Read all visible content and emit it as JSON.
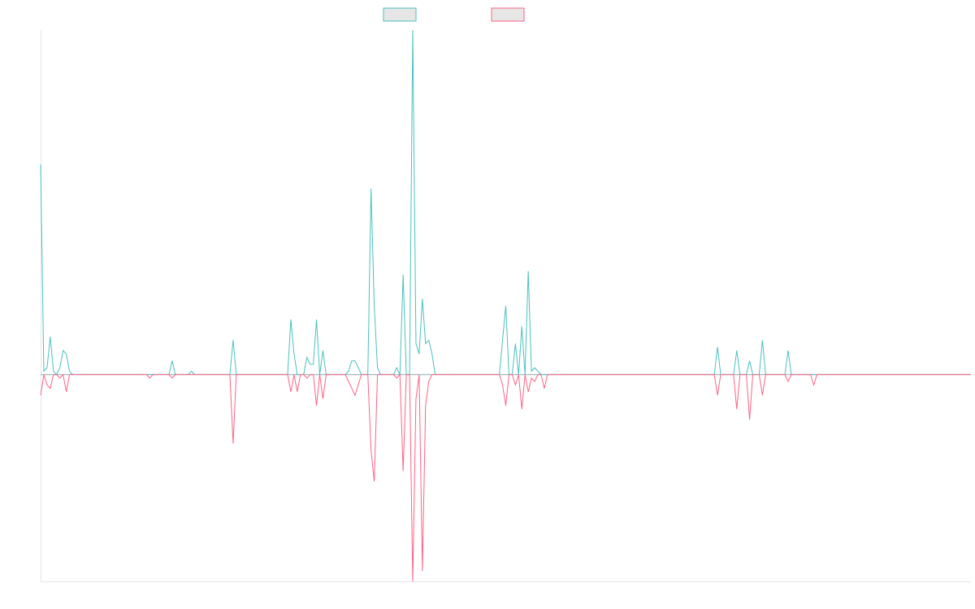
{
  "chart_data": {
    "type": "line",
    "title": "",
    "xlabel": "",
    "ylabel": "",
    "legend": "top-center",
    "grid": false,
    "xlim": [
      0,
      290
    ],
    "ylim": [
      -60,
      100
    ],
    "baseline": 0,
    "colors": [
      "#4bc0c0",
      "#ff6384"
    ],
    "series": [
      {
        "name": "",
        "color": "#4bc0c0",
        "points": [
          [
            0,
            61
          ],
          [
            1,
            1
          ],
          [
            2,
            2
          ],
          [
            3,
            11
          ],
          [
            4,
            1
          ],
          [
            5,
            0
          ],
          [
            6,
            2
          ],
          [
            7,
            7
          ],
          [
            8,
            6
          ],
          [
            9,
            1
          ],
          [
            10,
            0
          ],
          [
            22,
            0
          ],
          [
            33,
            0
          ],
          [
            34,
            0
          ],
          [
            35,
            0
          ],
          [
            40,
            0
          ],
          [
            41,
            4
          ],
          [
            42,
            0
          ],
          [
            46,
            0
          ],
          [
            47,
            1
          ],
          [
            48,
            0
          ],
          [
            59,
            0
          ],
          [
            60,
            10
          ],
          [
            61,
            0
          ],
          [
            77,
            0
          ],
          [
            78,
            16
          ],
          [
            79,
            6
          ],
          [
            80,
            0
          ],
          [
            81,
            0
          ],
          [
            82,
            0
          ],
          [
            83,
            5
          ],
          [
            84,
            3
          ],
          [
            85,
            3
          ],
          [
            86,
            16
          ],
          [
            87,
            0
          ],
          [
            88,
            7
          ],
          [
            89,
            0
          ],
          [
            95,
            0
          ],
          [
            96,
            1
          ],
          [
            97,
            4
          ],
          [
            98,
            4
          ],
          [
            99,
            2
          ],
          [
            100,
            0
          ],
          [
            102,
            0
          ],
          [
            103,
            54
          ],
          [
            104,
            20
          ],
          [
            105,
            2
          ],
          [
            106,
            0
          ],
          [
            110,
            0
          ],
          [
            111,
            2
          ],
          [
            112,
            0
          ],
          [
            113,
            29
          ],
          [
            114,
            0
          ],
          [
            115,
            0
          ],
          [
            116,
            100
          ],
          [
            117,
            9
          ],
          [
            118,
            6
          ],
          [
            119,
            22
          ],
          [
            120,
            9
          ],
          [
            121,
            10
          ],
          [
            122,
            6
          ],
          [
            123,
            0
          ],
          [
            143,
            0
          ],
          [
            144,
            10
          ],
          [
            145,
            20
          ],
          [
            146,
            0
          ],
          [
            147,
            0
          ],
          [
            148,
            9
          ],
          [
            149,
            0
          ],
          [
            150,
            14
          ],
          [
            151,
            0
          ],
          [
            152,
            30
          ],
          [
            153,
            1
          ],
          [
            154,
            2
          ],
          [
            155,
            1
          ],
          [
            156,
            0
          ],
          [
            158,
            0
          ],
          [
            179,
            0
          ],
          [
            210,
            0
          ],
          [
            211,
            8
          ],
          [
            212,
            0
          ],
          [
            216,
            0
          ],
          [
            217,
            7
          ],
          [
            218,
            0
          ],
          [
            220,
            0
          ],
          [
            221,
            4
          ],
          [
            222,
            0
          ],
          [
            224,
            0
          ],
          [
            225,
            10
          ],
          [
            226,
            0
          ],
          [
            232,
            0
          ],
          [
            233,
            7
          ],
          [
            234,
            0
          ],
          [
            290,
            0
          ]
        ]
      },
      {
        "name": "",
        "color": "#ff6384",
        "points": [
          [
            0,
            -6
          ],
          [
            1,
            0
          ],
          [
            2,
            -3
          ],
          [
            3,
            -4
          ],
          [
            4,
            0
          ],
          [
            5,
            0
          ],
          [
            6,
            -1
          ],
          [
            7,
            0
          ],
          [
            8,
            -5
          ],
          [
            9,
            0
          ],
          [
            10,
            0
          ],
          [
            22,
            0
          ],
          [
            33,
            0
          ],
          [
            34,
            -1
          ],
          [
            35,
            0
          ],
          [
            40,
            0
          ],
          [
            41,
            -1
          ],
          [
            42,
            0
          ],
          [
            59,
            0
          ],
          [
            60,
            -20
          ],
          [
            61,
            0
          ],
          [
            77,
            0
          ],
          [
            78,
            -5
          ],
          [
            79,
            0
          ],
          [
            80,
            -5
          ],
          [
            81,
            0
          ],
          [
            82,
            0
          ],
          [
            83,
            -1
          ],
          [
            84,
            0
          ],
          [
            85,
            0
          ],
          [
            86,
            -9
          ],
          [
            87,
            0
          ],
          [
            88,
            -7
          ],
          [
            89,
            0
          ],
          [
            95,
            0
          ],
          [
            96,
            -2
          ],
          [
            97,
            -4
          ],
          [
            98,
            -6
          ],
          [
            99,
            -3
          ],
          [
            100,
            0
          ],
          [
            102,
            0
          ],
          [
            103,
            -22
          ],
          [
            104,
            -31
          ],
          [
            105,
            0
          ],
          [
            106,
            0
          ],
          [
            110,
            0
          ],
          [
            111,
            -1
          ],
          [
            112,
            0
          ],
          [
            113,
            -28
          ],
          [
            114,
            0
          ],
          [
            115,
            0
          ],
          [
            116,
            -60
          ],
          [
            117,
            -7
          ],
          [
            118,
            0
          ],
          [
            119,
            -57
          ],
          [
            120,
            -9
          ],
          [
            121,
            -2
          ],
          [
            122,
            0
          ],
          [
            143,
            0
          ],
          [
            144,
            -3
          ],
          [
            145,
            -9
          ],
          [
            146,
            0
          ],
          [
            147,
            0
          ],
          [
            148,
            -3
          ],
          [
            149,
            0
          ],
          [
            150,
            -10
          ],
          [
            151,
            0
          ],
          [
            152,
            -5
          ],
          [
            153,
            -1
          ],
          [
            154,
            -2
          ],
          [
            155,
            0
          ],
          [
            156,
            0
          ],
          [
            157,
            -4
          ],
          [
            158,
            0
          ],
          [
            179,
            0
          ],
          [
            210,
            0
          ],
          [
            211,
            -6
          ],
          [
            212,
            0
          ],
          [
            216,
            0
          ],
          [
            217,
            -10
          ],
          [
            218,
            0
          ],
          [
            220,
            0
          ],
          [
            221,
            -13
          ],
          [
            222,
            0
          ],
          [
            224,
            0
          ],
          [
            225,
            -6
          ],
          [
            226,
            0
          ],
          [
            232,
            0
          ],
          [
            233,
            -2
          ],
          [
            234,
            0
          ],
          [
            240,
            0
          ],
          [
            241,
            -3
          ],
          [
            242,
            0
          ],
          [
            290,
            0
          ]
        ]
      }
    ]
  }
}
